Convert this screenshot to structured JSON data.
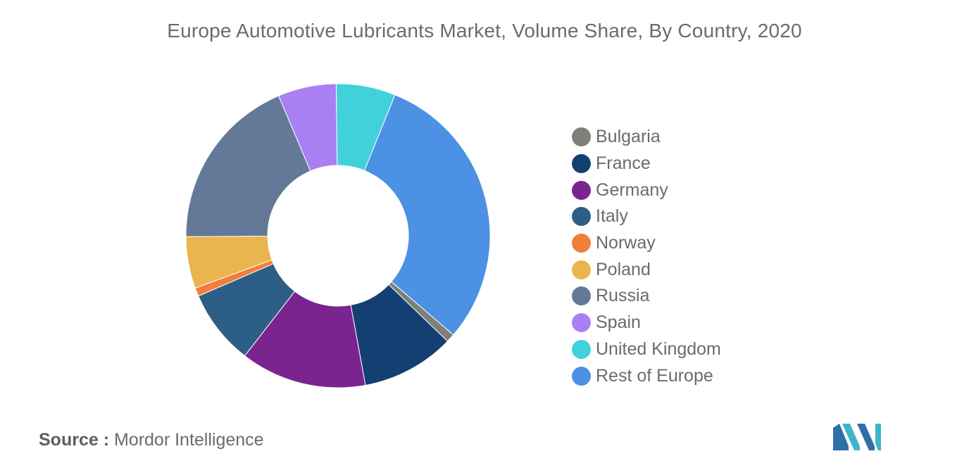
{
  "title": "Europe Automotive Lubricants Market, Volume Share, By Country, 2020",
  "source": {
    "prefix": "Source :",
    "text": " Mordor Intelligence"
  },
  "logo": {
    "icon": "mordor-intelligence-logo-icon",
    "colors": [
      "#2f6fa8",
      "#3fb6c8"
    ]
  },
  "chart_data": {
    "type": "pie",
    "donut": true,
    "title": "Europe Automotive Lubricants Market, Volume Share, By Country, 2020",
    "legend_position": "right",
    "start_angle_deg": 22,
    "direction": "clockwise",
    "categories": [
      "Bulgaria",
      "France",
      "Germany",
      "Italy",
      "Norway",
      "Poland",
      "Russia",
      "Spain",
      "United Kingdom",
      "Rest of Europe"
    ],
    "values": [
      0.9,
      9.9,
      13.4,
      8.0,
      0.9,
      5.5,
      18.7,
      6.2,
      6.3,
      30.2
    ],
    "colors": [
      "#7f7f7a",
      "#143f73",
      "#7b2490",
      "#2d5f86",
      "#f07f3d",
      "#e9b54c",
      "#647898",
      "#a880f4",
      "#40d1dc",
      "#4c91e4"
    ]
  }
}
